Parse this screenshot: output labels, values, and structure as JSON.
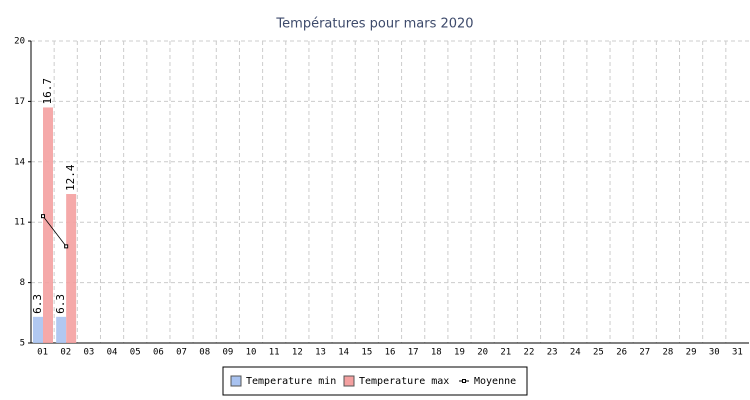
{
  "chart_data": {
    "type": "bar",
    "title": "Températures pour mars 2020",
    "categories": [
      "01",
      "02",
      "03",
      "04",
      "05",
      "06",
      "07",
      "08",
      "09",
      "10",
      "11",
      "12",
      "13",
      "14",
      "15",
      "16",
      "17",
      "18",
      "19",
      "20",
      "21",
      "22",
      "23",
      "24",
      "25",
      "26",
      "27",
      "28",
      "29",
      "30",
      "31"
    ],
    "series": [
      {
        "name": "Temperature min",
        "color": "#a8c2f0",
        "values": [
          6.3,
          6.3,
          null,
          null,
          null,
          null,
          null,
          null,
          null,
          null,
          null,
          null,
          null,
          null,
          null,
          null,
          null,
          null,
          null,
          null,
          null,
          null,
          null,
          null,
          null,
          null,
          null,
          null,
          null,
          null,
          null
        ]
      },
      {
        "name": "Temperature max",
        "color": "#f4a0a0",
        "values": [
          16.7,
          12.4,
          null,
          null,
          null,
          null,
          null,
          null,
          null,
          null,
          null,
          null,
          null,
          null,
          null,
          null,
          null,
          null,
          null,
          null,
          null,
          null,
          null,
          null,
          null,
          null,
          null,
          null,
          null,
          null,
          null
        ]
      },
      {
        "name": "Moyenne",
        "color": "#000000",
        "type": "line",
        "values": [
          11.3,
          9.8,
          null,
          null,
          null,
          null,
          null,
          null,
          null,
          null,
          null,
          null,
          null,
          null,
          null,
          null,
          null,
          null,
          null,
          null,
          null,
          null,
          null,
          null,
          null,
          null,
          null,
          null,
          null,
          null,
          null
        ]
      }
    ],
    "ylim": [
      5,
      20
    ],
    "yticks": [
      5,
      8,
      11,
      14,
      17,
      20
    ],
    "grid": true
  }
}
